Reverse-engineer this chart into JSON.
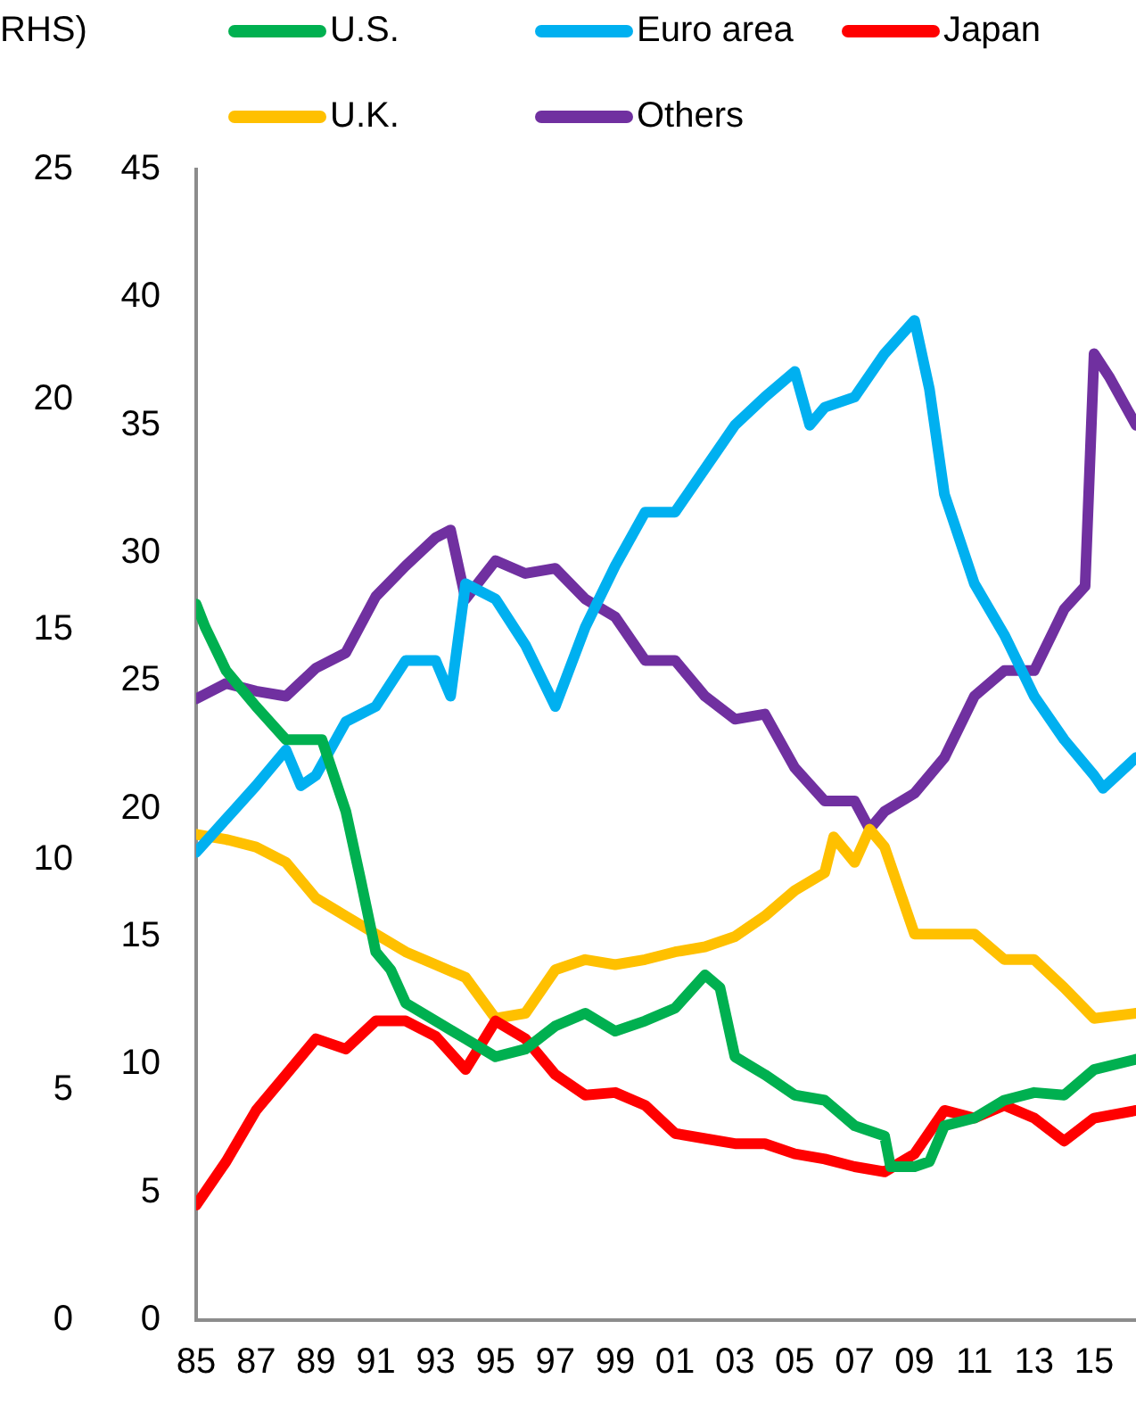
{
  "chart_data": {
    "type": "line",
    "y2label": "RHS)",
    "legend": "top",
    "grid": false,
    "marker": "none",
    "line_style": "solid",
    "xlim": [
      1985,
      2016.4
    ],
    "xticks": [
      {
        "value": 1985,
        "label": "85"
      },
      {
        "value": 1987,
        "label": "87"
      },
      {
        "value": 1989,
        "label": "89"
      },
      {
        "value": 1991,
        "label": "91"
      },
      {
        "value": 1993,
        "label": "93"
      },
      {
        "value": 1995,
        "label": "95"
      },
      {
        "value": 1997,
        "label": "97"
      },
      {
        "value": 1999,
        "label": "99"
      },
      {
        "value": 2001,
        "label": "01"
      },
      {
        "value": 2003,
        "label": "03"
      },
      {
        "value": 2005,
        "label": "05"
      },
      {
        "value": 2007,
        "label": "07"
      },
      {
        "value": 2009,
        "label": "09"
      },
      {
        "value": 2011,
        "label": "11"
      },
      {
        "value": 2013,
        "label": "13"
      },
      {
        "value": 2015,
        "label": "15"
      }
    ],
    "ylim": [
      0,
      45
    ],
    "yticks": [
      0,
      5,
      10,
      15,
      20,
      25,
      30,
      35,
      40,
      45
    ],
    "y2lim": [
      0,
      25
    ],
    "y2ticks": [
      0,
      5,
      10,
      15,
      20,
      25
    ],
    "series": [
      {
        "name": "U.S.",
        "color": "#00b050",
        "x": [
          1985,
          1985.3,
          1986,
          1987,
          1988,
          1989.2,
          1990,
          1990.5,
          1991,
          1991.5,
          1992,
          1993,
          1994,
          1995,
          1996,
          1997,
          1998,
          1999,
          2000,
          2001,
          2002,
          2002.5,
          2003,
          2004,
          2005,
          2006,
          2007,
          2008,
          2008.2,
          2009,
          2009.5,
          2010,
          2011,
          2012,
          2013,
          2014,
          2015,
          2016.4
        ],
        "values": [
          28.0,
          27.1,
          25.4,
          24.0,
          22.7,
          22.7,
          19.9,
          17.2,
          14.4,
          13.7,
          12.4,
          11.7,
          11.0,
          10.3,
          10.6,
          11.5,
          12.0,
          11.3,
          11.7,
          12.2,
          13.5,
          13.0,
          10.3,
          9.6,
          8.8,
          8.6,
          7.6,
          7.2,
          6.0,
          6.0,
          6.2,
          7.6,
          7.9,
          8.6,
          8.9,
          8.8,
          9.8,
          10.2
        ]
      },
      {
        "name": "Euro area",
        "color": "#00b0f0",
        "x": [
          1985,
          1986,
          1987,
          1988,
          1988.5,
          1989,
          1990,
          1991,
          1992,
          1993,
          1993.5,
          1994,
          1995,
          1996,
          1997,
          1998,
          1999,
          2000,
          2001,
          2002,
          2003,
          2004,
          2005,
          2005.5,
          2006,
          2007,
          2008,
          2009,
          2009.5,
          2010,
          2011,
          2012,
          2013,
          2014,
          2015,
          2015.3,
          2016.4
        ],
        "values": [
          18.3,
          19.6,
          20.9,
          22.3,
          20.9,
          21.3,
          23.4,
          24.0,
          25.8,
          25.8,
          24.4,
          28.8,
          28.2,
          26.4,
          24.0,
          27.1,
          29.5,
          31.6,
          31.6,
          33.3,
          35.0,
          36.1,
          37.1,
          35.0,
          35.7,
          36.1,
          37.8,
          39.1,
          36.4,
          32.3,
          28.8,
          26.8,
          24.4,
          22.7,
          21.3,
          20.8,
          22.0
        ]
      },
      {
        "name": "Japan",
        "color": "#ff0000",
        "x": [
          1985,
          1986,
          1987,
          1988,
          1989,
          1990,
          1991,
          1992,
          1993,
          1994,
          1995,
          1996,
          1997,
          1998,
          1999,
          2000,
          2001,
          2002,
          2003,
          2004,
          2005,
          2006,
          2007,
          2008,
          2009,
          2010,
          2011,
          2012,
          2013,
          2014,
          2015,
          2016.4
        ],
        "values": [
          4.5,
          6.2,
          8.2,
          9.6,
          11.0,
          10.6,
          11.7,
          11.7,
          11.1,
          9.8,
          11.7,
          11.0,
          9.6,
          8.8,
          8.9,
          8.4,
          7.3,
          7.1,
          6.9,
          6.9,
          6.5,
          6.3,
          6.0,
          5.8,
          6.5,
          8.2,
          7.9,
          8.4,
          7.9,
          7.0,
          7.9,
          8.2
        ]
      },
      {
        "name": "U.K.",
        "color": "#ffc000",
        "x": [
          1985,
          1986,
          1987,
          1988,
          1989,
          1990,
          1991,
          1992,
          1993,
          1994,
          1995,
          1996,
          1997,
          1998,
          1999,
          2000,
          2001,
          2002,
          2003,
          2004,
          2005,
          2006,
          2006.3,
          2007,
          2007.5,
          2008,
          2009,
          2010,
          2011,
          2012,
          2013,
          2014,
          2015,
          2016.4
        ],
        "values": [
          19.0,
          18.8,
          18.5,
          17.9,
          16.5,
          15.8,
          15.1,
          14.4,
          13.9,
          13.4,
          11.8,
          12.0,
          13.7,
          14.1,
          13.9,
          14.1,
          14.4,
          14.6,
          15.0,
          15.8,
          16.8,
          17.5,
          18.9,
          17.9,
          19.2,
          18.5,
          15.1,
          15.1,
          15.1,
          14.1,
          14.1,
          13.0,
          11.8,
          12.0
        ]
      },
      {
        "name": "Others",
        "color": "#7030a0",
        "x": [
          1985,
          1986,
          1987,
          1988,
          1989,
          1990,
          1991,
          1992,
          1993,
          1993.5,
          1994,
          1995,
          1996,
          1997,
          1998,
          1999,
          2000,
          2001,
          2002,
          2003,
          2004,
          2005,
          2006,
          2007,
          2007.5,
          2008,
          2009,
          2010,
          2011,
          2012,
          2013,
          2014,
          2014.7,
          2015,
          2015.5,
          2016.4
        ],
        "values": [
          24.3,
          24.9,
          24.6,
          24.4,
          25.5,
          26.1,
          28.3,
          29.5,
          30.6,
          30.9,
          28.2,
          29.7,
          29.2,
          29.4,
          28.2,
          27.5,
          25.8,
          25.8,
          24.4,
          23.5,
          23.7,
          21.6,
          20.3,
          20.3,
          19.2,
          19.9,
          20.6,
          22.0,
          24.4,
          25.4,
          25.4,
          27.8,
          28.7,
          37.8,
          36.9,
          35.0
        ]
      }
    ]
  }
}
